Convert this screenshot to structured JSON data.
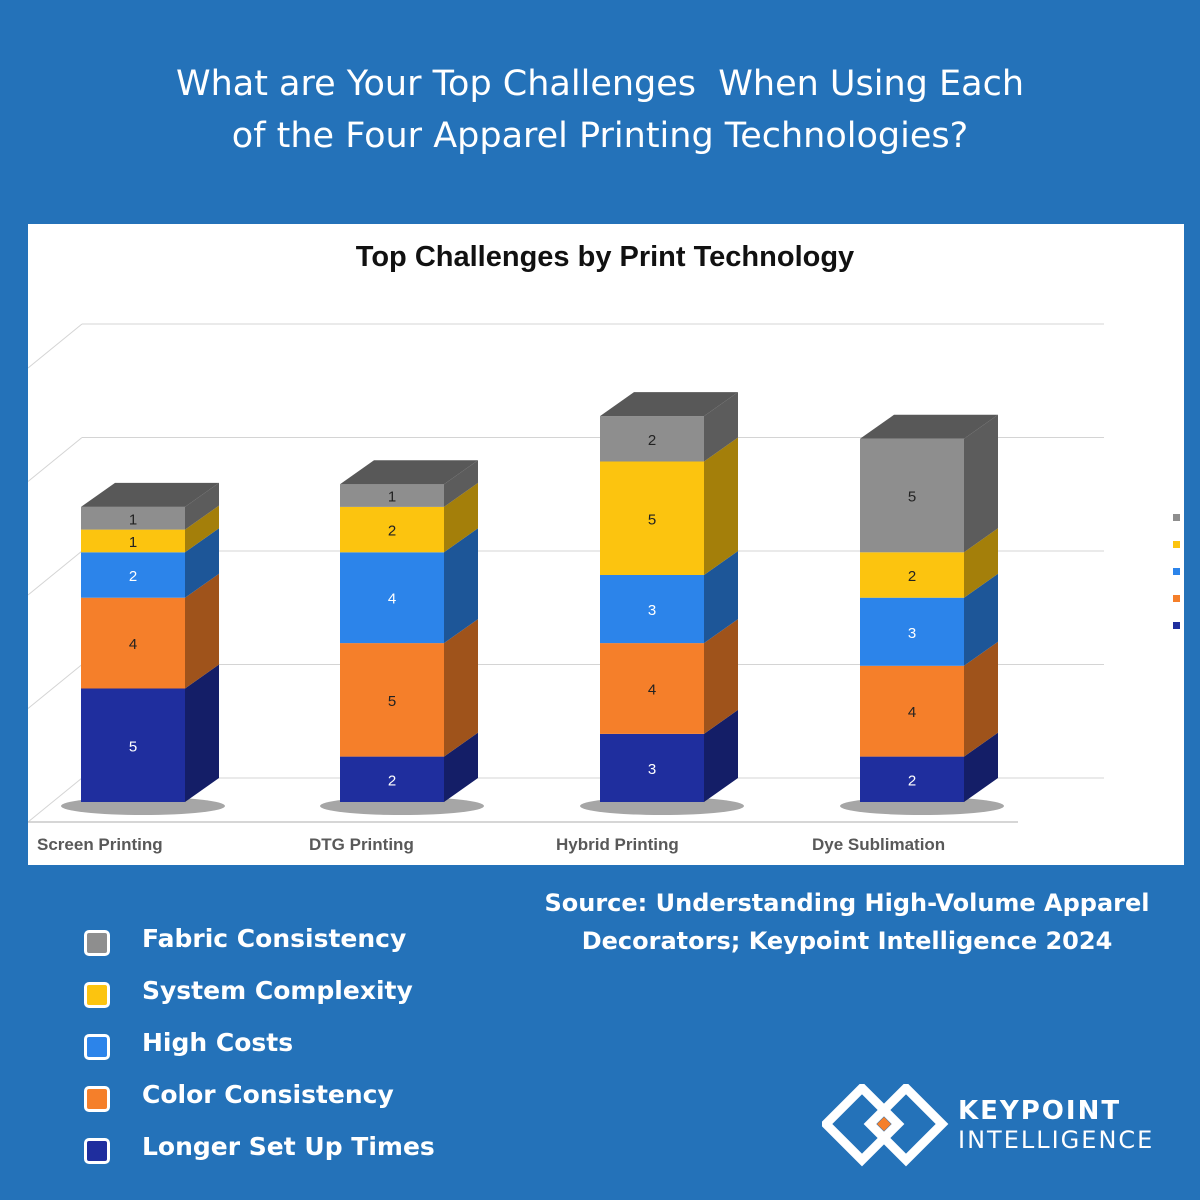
{
  "headline": {
    "line1": "What are Your Top Challenges  When Using Each",
    "line2": "of the Four Apparel Printing Technologies?"
  },
  "source": {
    "line1": "Source: Understanding High-Volume Apparel",
    "line2": "Decorators; Keypoint Intelligence 2024"
  },
  "logo": {
    "name_line1": "KEYPOINT",
    "name_line2": "INTELLIGENCE",
    "icon": "keypoint-diamond-logo-icon"
  },
  "chart_data": {
    "type": "bar",
    "stacked": true,
    "style": "3d",
    "title": "Top Challenges by Print Technology",
    "categories": [
      "Screen Printing",
      "DTG Printing",
      "Hybrid Printing",
      "Dye Sublimation"
    ],
    "series": [
      {
        "name": "Longer Set Up Times",
        "values": [
          5,
          2,
          3,
          2
        ],
        "color": "#1f2e9e"
      },
      {
        "name": "Color Consistency",
        "values": [
          4,
          5,
          4,
          4
        ],
        "color": "#f57f2a"
      },
      {
        "name": "High Costs",
        "values": [
          2,
          4,
          3,
          3
        ],
        "color": "#2c84ea"
      },
      {
        "name": "System Complexity",
        "values": [
          1,
          2,
          5,
          2
        ],
        "color": "#fcc40f"
      },
      {
        "name": "Fabric Consistency",
        "values": [
          1,
          1,
          2,
          5
        ],
        "color": "#8e8e8e"
      }
    ],
    "ylim": [
      0,
      20
    ],
    "grid": true,
    "legend_position": "bottom-left"
  },
  "legend_items": [
    {
      "label": "Fabric Consistency",
      "color": "#8e8e8e"
    },
    {
      "label": "System Complexity",
      "color": "#fcc40f"
    },
    {
      "label": "High Costs",
      "color": "#2c84ea"
    },
    {
      "label": "Color Consistency",
      "color": "#f57f2a"
    },
    {
      "label": "Longer Set Up Times",
      "color": "#1f2e9e"
    }
  ]
}
